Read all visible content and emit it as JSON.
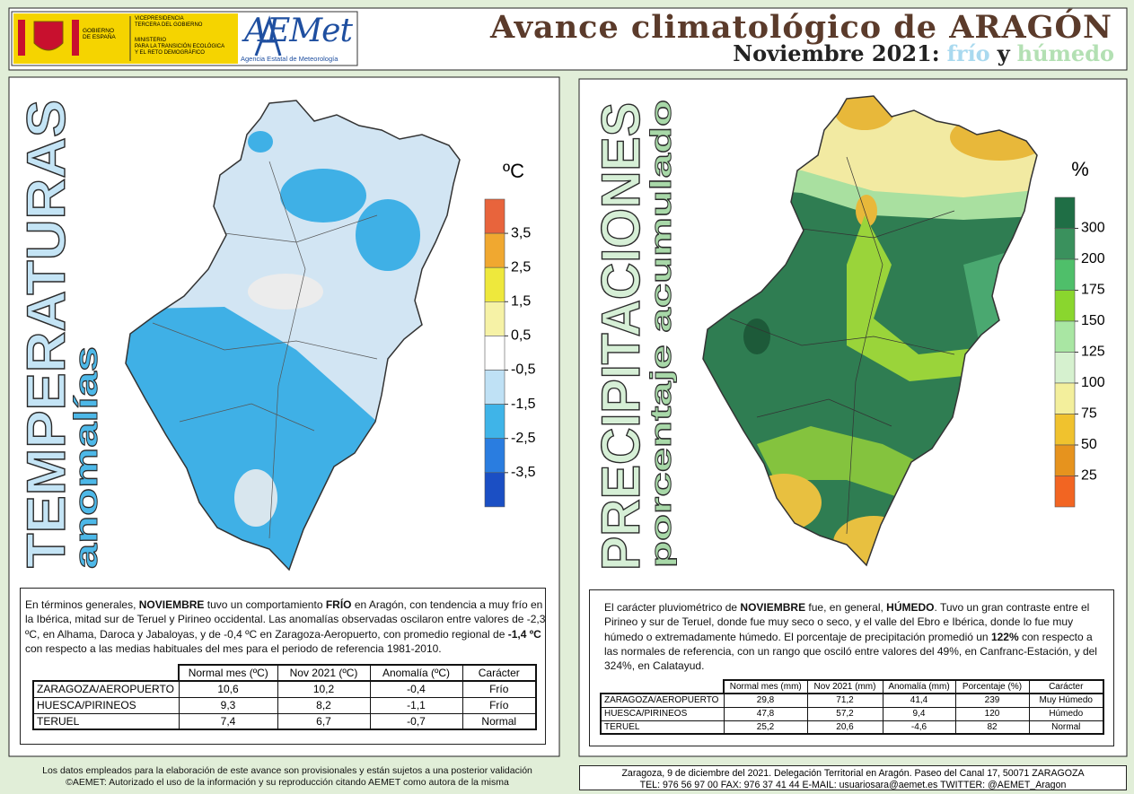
{
  "header": {
    "logo": {
      "government": [
        "GOBIERNO",
        "DE ESPAÑA"
      ],
      "vicepresidency": [
        "VICEPRESIDENCIA",
        "TERCERA DEL GOBIERNO"
      ],
      "ministry": [
        "MINISTERIO",
        "PARA LA TRANSICIÓN ECOLÓGICA",
        "Y EL RETO DEMOGRÁFICO"
      ],
      "agency_logo": "AEMet",
      "agency": "Agencia Estatal de Meteorología"
    },
    "title": "Avance climatológico de ARAGÓN",
    "subtitle": [
      "Noviembre 2021:",
      "frío",
      "y",
      "húmedo"
    ]
  },
  "panels": [
    {
      "title": "TEMPERATURAS",
      "subtitle": "anomalías",
      "legend": {
        "unit": "ºC",
        "colors": [
          "#e8643c",
          "#f0a830",
          "#eee83c",
          "#f6f2a6",
          "#ffffff",
          "#bfe1f5",
          "#3fb4e8",
          "#2a7de0",
          "#1b4fc4"
        ],
        "ticks": [
          {
            "value": 3.5,
            "label": "3,5"
          },
          {
            "value": 2.5,
            "label": "2,5"
          },
          {
            "value": 1.5,
            "label": "1,5"
          },
          {
            "value": 0.5,
            "label": "0,5"
          },
          {
            "value": -0.5,
            "label": "-0,5"
          },
          {
            "value": -1.5,
            "label": "-1,5"
          },
          {
            "value": -2.5,
            "label": "-2,5"
          },
          {
            "value": -3.5,
            "label": "-3,5"
          }
        ]
      },
      "summary": [
        {
          "text": "En términos generales, ",
          "bold": false
        },
        {
          "text": "NOVIEMBRE",
          "bold": true
        },
        {
          "text": " tuvo un comportamiento ",
          "bold": false
        },
        {
          "text": "FRÍO",
          "bold": true
        },
        {
          "text": " en Aragón, con tendencia a muy frío en la Ibérica, mitad sur de Teruel y Pirineo occidental. Las anomalías observadas oscilaron entre valores de -2,3 ºC, en Alhama, Daroca y Jabaloyas, y de -0,4 ºC en Zaragoza-Aeropuerto, con promedio regional de ",
          "bold": false
        },
        {
          "text": "-1,4 ºC",
          "bold": true
        },
        {
          "text": " con respecto a las medias habituales del mes para el periodo de referencia 1981-2010.",
          "bold": false
        }
      ],
      "table": {
        "columns": [
          "Normal mes (ºC)",
          "Nov 2021 (ºC)",
          "Anomalía (ºC)",
          "Carácter"
        ],
        "rows": [
          [
            "ZARAGOZA/AEROPUERTO",
            "10,6",
            "10,2",
            "-0,4",
            "Frío"
          ],
          [
            "HUESCA/PIRINEOS",
            "9,3",
            "8,2",
            "-1,1",
            "Frío"
          ],
          [
            "TERUEL",
            "7,4",
            "6,7",
            "-0,7",
            "Normal"
          ]
        ]
      }
    },
    {
      "title": "PRECIPITACIONES",
      "subtitle": "porcentaje acumulado",
      "legend": {
        "unit": "%",
        "colors": [
          "#1f6e45",
          "#3a915d",
          "#4fbf6a",
          "#8ad62e",
          "#a9e6a3",
          "#d6f1cf",
          "#f3ef9c",
          "#f0c22e",
          "#e6931e",
          "#f26522"
        ],
        "ticks": [
          300,
          200,
          175,
          150,
          125,
          100,
          75,
          50,
          25
        ]
      },
      "summary": [
        {
          "text": "El carácter pluviométrico de ",
          "bold": false
        },
        {
          "text": "NOVIEMBRE",
          "bold": true
        },
        {
          "text": " fue, en general, ",
          "bold": false
        },
        {
          "text": "HÚMEDO",
          "bold": true
        },
        {
          "text": ". Tuvo un gran contraste entre el Pirineo y sur de Teruel, donde fue muy seco o seco, y el valle del Ebro e Ibérica, donde lo fue muy húmedo o extremadamente húmedo. El porcentaje de precipitación promedió un ",
          "bold": false
        },
        {
          "text": "122%",
          "bold": true
        },
        {
          "text": " con respecto a las normales de referencia, con un rango que osciló entre valores del 49%, en Canfranc-Estación, y del 324%, en Calatayud.",
          "bold": false
        }
      ],
      "table": {
        "columns": [
          "Normal mes (mm)",
          "Nov 2021 (mm)",
          "Anomalía (mm)",
          "Porcentaje (%)",
          "Carácter"
        ],
        "rows": [
          [
            "ZARAGOZA/AEROPUERTO",
            "29,8",
            "71,2",
            "41,4",
            "239",
            "Muy Húmedo"
          ],
          [
            "HUESCA/PIRINEOS",
            "47,8",
            "57,2",
            "9,4",
            "120",
            "Húmedo"
          ],
          [
            "TERUEL",
            "25,2",
            "20,6",
            "-4,6",
            "82",
            "Normal"
          ]
        ]
      }
    }
  ],
  "footer": {
    "disclaimer": [
      "Los datos empleados para la elaboración de este avance son provisionales y están sujetos a una posterior validación",
      "©AEMET: Autorizado el uso de la información y su reproducción citando AEMET como autora de la misma"
    ],
    "contact": [
      "Zaragoza, 9 de diciembre del 2021. Delegación Territorial en Aragón. Paseo del Canal 17, 50071 ZARAGOZA",
      "TEL: 976 56 97 00  FAX: 976 37 41 44  E-MAIL: usuariosara@aemet.es  TWITTER: @AEMET_Aragon"
    ]
  }
}
